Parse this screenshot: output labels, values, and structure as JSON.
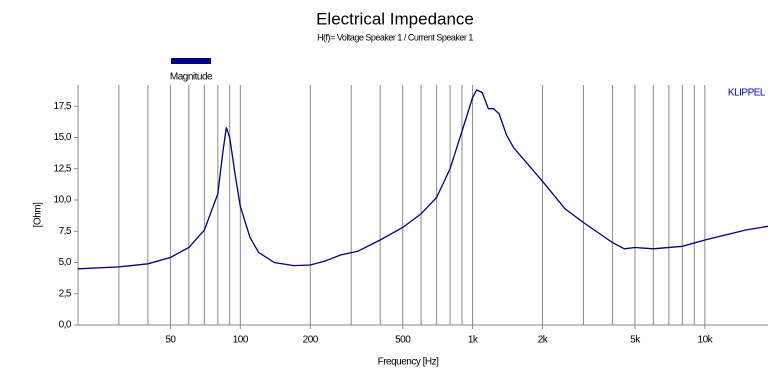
{
  "chart_data": {
    "type": "line",
    "title": "Electrical Impedance",
    "subtitle": "H(f)= Voltage Speaker 1 / Current Speaker 1",
    "x_label": "Frequency [Hz]",
    "y_label": "[Ohm]",
    "annotation": "KLIPPEL",
    "x_log": true,
    "grid": true,
    "xlim": [
      20,
      18700
    ],
    "ylim": [
      0,
      19.2
    ],
    "xticks": [
      50,
      100,
      200,
      500,
      {
        "value": 1000,
        "label": "1k"
      },
      {
        "value": 2000,
        "label": "2k"
      },
      {
        "value": 5000,
        "label": "5k"
      },
      {
        "value": 10000,
        "label": "10k"
      }
    ],
    "xminor": [
      30,
      40,
      60,
      70,
      80,
      90,
      300,
      400,
      600,
      700,
      800,
      900,
      3000,
      4000,
      6000,
      7000,
      8000,
      9000
    ],
    "yticks": [
      {
        "value": 0,
        "label": "0,0"
      },
      {
        "value": 2.5,
        "label": "2,5"
      },
      {
        "value": 5,
        "label": "5,0"
      },
      {
        "value": 7.5,
        "label": "7,5"
      },
      {
        "value": 10,
        "label": "10,0"
      },
      {
        "value": 12.5,
        "label": "12,5"
      },
      {
        "value": 15,
        "label": "15,0"
      },
      {
        "value": 17.5,
        "label": "17,5"
      }
    ],
    "x": [
      20,
      30,
      40,
      50,
      60,
      70,
      80,
      84,
      87,
      90,
      95,
      100,
      110,
      120,
      140,
      170,
      200,
      230,
      270,
      320,
      400,
      500,
      600,
      700,
      800,
      900,
      1000,
      1040,
      1100,
      1170,
      1230,
      1300,
      1400,
      1500,
      2000,
      2500,
      3000,
      4000,
      4500,
      5000,
      6000,
      8000,
      10000,
      15000,
      18700
    ],
    "series": [
      {
        "name": "Magnitude",
        "color": "#000080",
        "values": [
          4.5,
          4.65,
          4.9,
          5.4,
          6.2,
          7.6,
          10.5,
          13.8,
          15.8,
          15.0,
          12.0,
          9.5,
          7.0,
          5.8,
          5.0,
          4.75,
          4.8,
          5.1,
          5.6,
          5.9,
          6.8,
          7.8,
          8.9,
          10.2,
          12.5,
          15.5,
          18.2,
          18.8,
          18.6,
          17.3,
          17.3,
          16.9,
          15.2,
          14.2,
          11.5,
          9.3,
          8.2,
          6.6,
          6.1,
          6.2,
          6.1,
          6.3,
          6.8,
          7.6,
          7.9
        ]
      }
    ]
  }
}
